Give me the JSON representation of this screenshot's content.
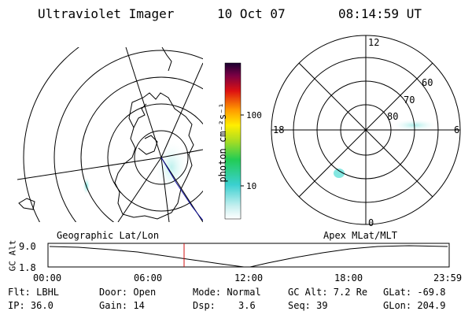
{
  "header": {
    "title": "Ultraviolet Imager",
    "date": "10 Oct 07",
    "time": "08:14:59 UT"
  },
  "colorbar": {
    "label": "photon cm⁻²s⁻¹",
    "ticks": [
      "100",
      "10"
    ]
  },
  "polar_plot": {
    "clock_labels": [
      "12",
      "18",
      "6",
      "0"
    ],
    "lat_labels": [
      "60",
      "70",
      "80"
    ]
  },
  "timeline": {
    "left_caption": "Geographic Lat/Lon",
    "right_caption": "Apex MLat/MLT",
    "axis_title": "GC Alt",
    "y_ticks": [
      "9.0",
      "1.8"
    ],
    "x_ticks": [
      "00:00",
      "06:00",
      "12:00",
      "18:00",
      "23:59"
    ],
    "marker_time": "08:15"
  },
  "info": {
    "flt": "Flt: LBHL",
    "ip": "IP: 36.0",
    "door": "Door: Open",
    "gain": "Gain: 14",
    "mode": "Mode: Normal",
    "dsp_label": "Dsp:",
    "dsp_value": "3.6",
    "gc_alt": "GC Alt: 7.2 Re",
    "seq": "Seq: 39",
    "glat": "GLat: -69.8",
    "glon": "GLon: 204.9"
  },
  "colors": {
    "marker": "#d01010",
    "orbit_track": "#1010a0",
    "aurora": "#7fe6e0"
  }
}
